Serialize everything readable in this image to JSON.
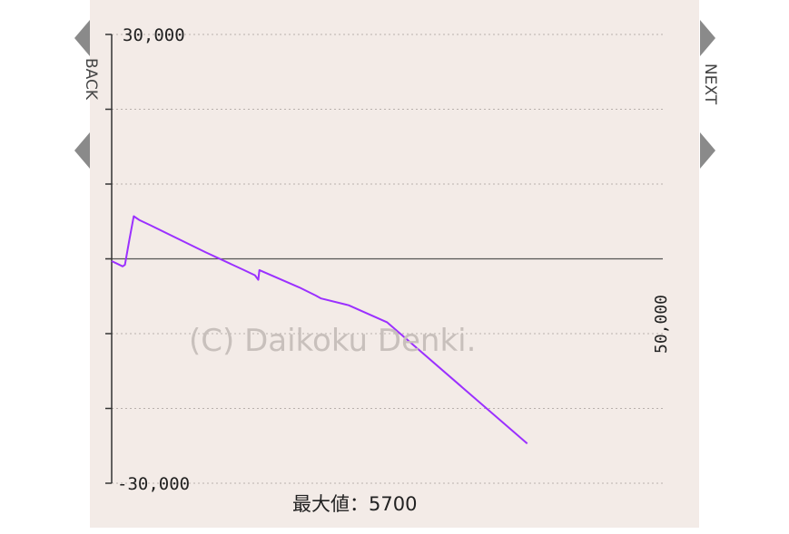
{
  "nav": {
    "back_label": "BACK",
    "next_label": "NEXT"
  },
  "watermark": "(C) Daikoku Denki.",
  "max_label": "最大値：5700",
  "chart_data": {
    "type": "line",
    "y_tick_labels": [
      "30,000",
      "-30,000"
    ],
    "x_max_label": "50,000",
    "ylim": [
      -30000,
      30000
    ],
    "xlim": [
      0,
      50000
    ],
    "y_gridlines": [
      30000,
      20000,
      10000,
      0,
      -10000,
      -20000,
      -30000
    ],
    "grid": "dotted horizontal",
    "line_color": "#9b30ff",
    "series": [
      {
        "x": [
          0,
          1000,
          1200,
          1600,
          2000,
          2500,
          3500,
          8500,
          12000,
          13000,
          13300,
          13400,
          17000,
          18500,
          19000,
          21500,
          25000,
          37700
        ],
        "y": [
          -300,
          -1000,
          -800,
          2500,
          5700,
          5200,
          4500,
          900,
          -1500,
          -2200,
          -2800,
          -1500,
          -3800,
          -4900,
          -5300,
          -6200,
          -8500,
          -24700
        ]
      }
    ]
  }
}
